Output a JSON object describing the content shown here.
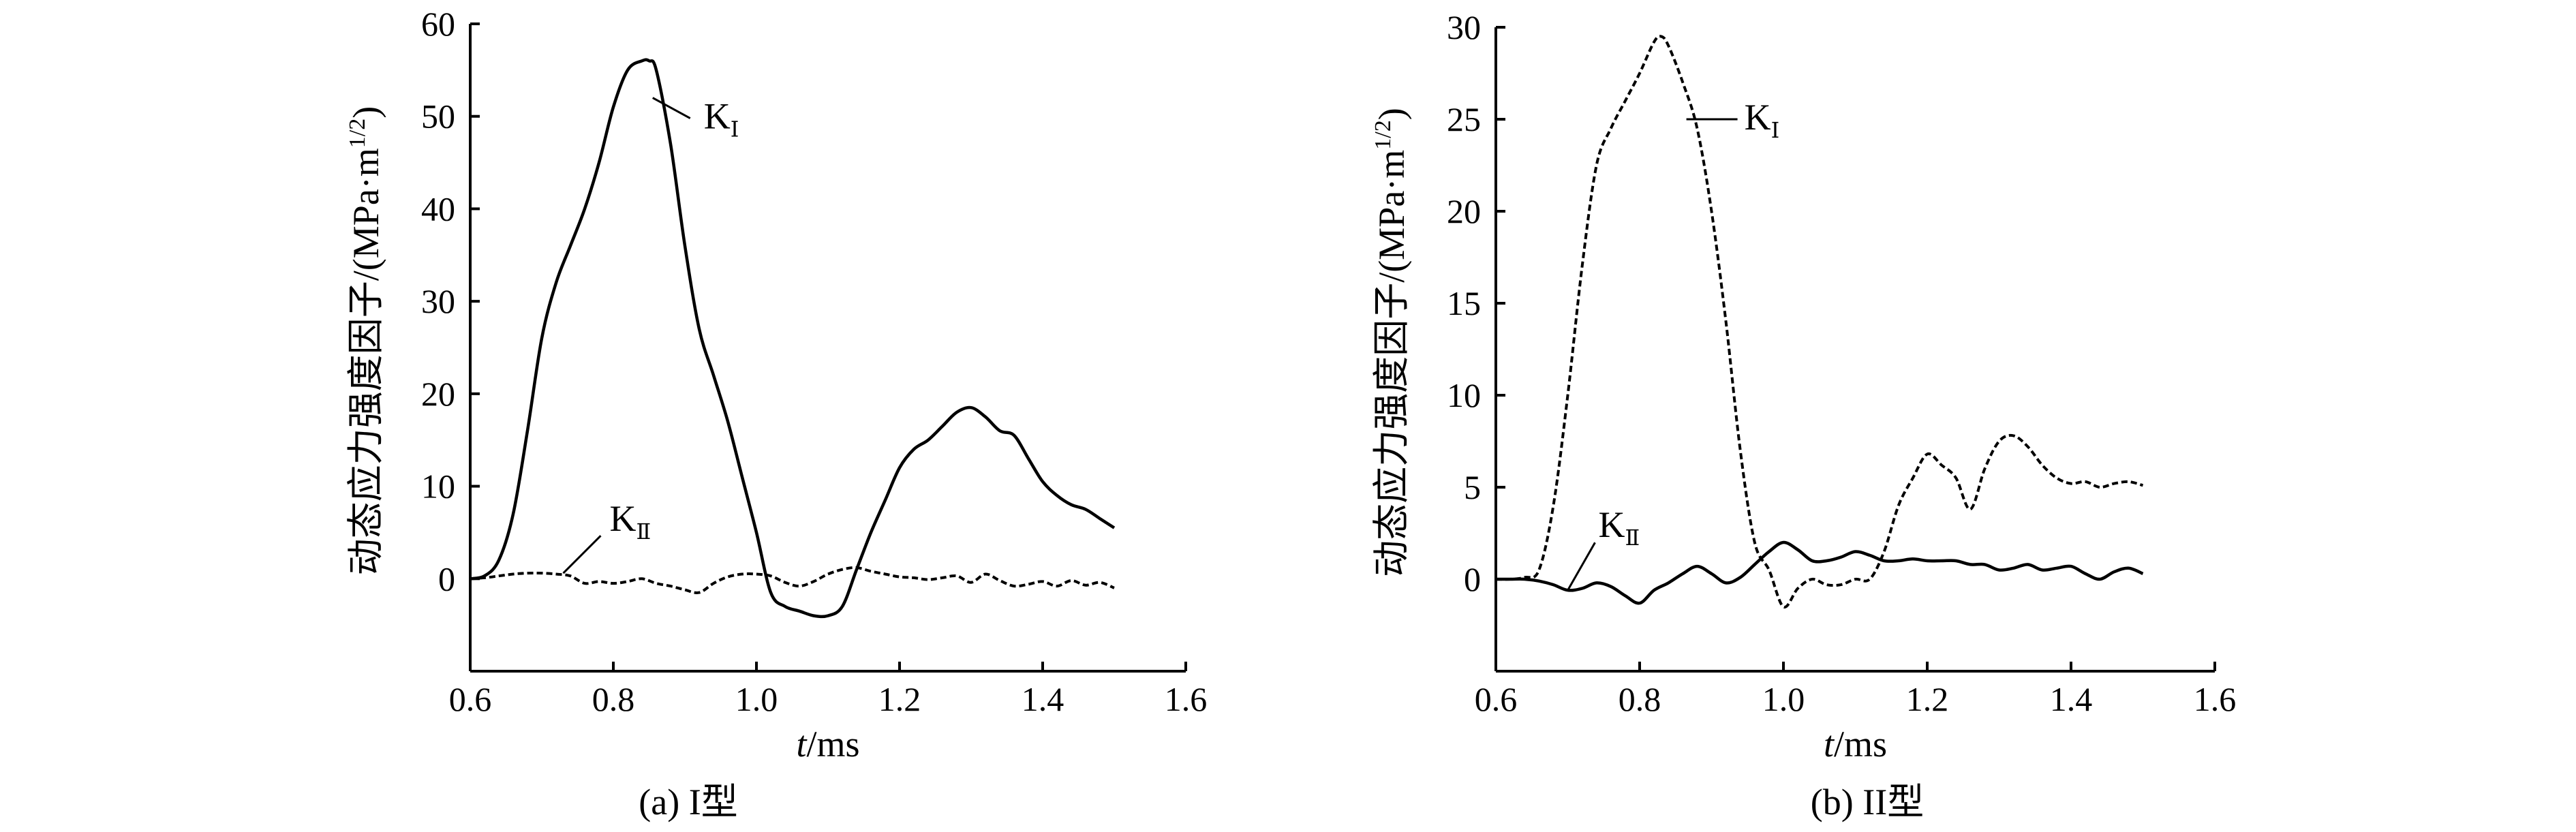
{
  "chart_data": [
    {
      "panel": "a",
      "type": "line",
      "caption": "(a) I型",
      "xlabel_italic": "t",
      "xlabel_rest": "/ms",
      "ylabel": "动态应力强度因子/(MPa·m",
      "ylabel_sup": "1/2",
      "ylabel_close": ")",
      "xlim": [
        0.6,
        1.6
      ],
      "ylim": [
        -10,
        60
      ],
      "xticks": [
        "0.6",
        "0.8",
        "1.0",
        "1.2",
        "1.4",
        "1.6"
      ],
      "xtick_values": [
        0.6,
        0.8,
        1.0,
        1.2,
        1.4,
        1.6
      ],
      "yticks": [
        "0",
        "10",
        "20",
        "30",
        "40",
        "50",
        "60"
      ],
      "ytick_values": [
        0,
        10,
        20,
        30,
        40,
        50,
        60
      ],
      "grid": false,
      "series": [
        {
          "name": "K",
          "subscript": "Ⅰ",
          "style": "solid",
          "x": [
            0.6,
            0.62,
            0.64,
            0.66,
            0.68,
            0.7,
            0.72,
            0.74,
            0.76,
            0.78,
            0.8,
            0.82,
            0.84,
            0.85,
            0.86,
            0.88,
            0.9,
            0.92,
            0.94,
            0.96,
            0.98,
            1.0,
            1.02,
            1.04,
            1.06,
            1.08,
            1.1,
            1.12,
            1.14,
            1.16,
            1.18,
            1.2,
            1.22,
            1.24,
            1.26,
            1.28,
            1.3,
            1.32,
            1.34,
            1.36,
            1.38,
            1.4,
            1.42,
            1.44,
            1.46,
            1.48,
            1.5
          ],
          "y": [
            0,
            0.3,
            2,
            7,
            16,
            26,
            32,
            36,
            40,
            45,
            51,
            55,
            56,
            56,
            55,
            47,
            36,
            27,
            22,
            17,
            11,
            5,
            -1.5,
            -3,
            -3.5,
            -4,
            -4,
            -3,
            1,
            5,
            8.5,
            12,
            14,
            15,
            16.5,
            18,
            18.5,
            17.5,
            16,
            15.5,
            13,
            10.5,
            9,
            8,
            7.5,
            6.5,
            5.5
          ]
        },
        {
          "name": "K",
          "subscript": "Ⅱ",
          "style": "dashed",
          "x": [
            0.6,
            0.62,
            0.64,
            0.66,
            0.68,
            0.7,
            0.72,
            0.74,
            0.76,
            0.78,
            0.8,
            0.82,
            0.84,
            0.86,
            0.88,
            0.9,
            0.92,
            0.94,
            0.96,
            0.98,
            1.0,
            1.02,
            1.04,
            1.06,
            1.08,
            1.1,
            1.12,
            1.14,
            1.16,
            1.18,
            1.2,
            1.22,
            1.24,
            1.26,
            1.28,
            1.3,
            1.32,
            1.34,
            1.36,
            1.38,
            1.4,
            1.42,
            1.44,
            1.46,
            1.48,
            1.5
          ],
          "y": [
            0,
            0.1,
            0.3,
            0.5,
            0.6,
            0.6,
            0.5,
            0.3,
            -0.5,
            -0.3,
            -0.5,
            -0.3,
            0,
            -0.5,
            -0.8,
            -1.2,
            -1.5,
            -0.5,
            0.2,
            0.5,
            0.5,
            0.3,
            -0.4,
            -0.8,
            -0.3,
            0.5,
            1,
            1.2,
            0.8,
            0.5,
            0.2,
            0.1,
            -0.1,
            0.1,
            0.3,
            -0.4,
            0.5,
            -0.2,
            -0.8,
            -0.6,
            -0.3,
            -0.8,
            -0.2,
            -0.7,
            -0.4,
            -1
          ]
        }
      ],
      "annotations": [
        {
          "label": "K",
          "subscript": "Ⅰ",
          "series_index": 0,
          "point_x": 0.855,
          "point_y": 52
        },
        {
          "label": "K",
          "subscript": "Ⅱ",
          "series_index": 1,
          "point_x": 0.73,
          "point_y": 0.6
        }
      ]
    },
    {
      "panel": "b",
      "type": "line",
      "caption": "(b) II型",
      "xlabel_italic": "t",
      "xlabel_rest": "/ms",
      "ylabel": "动态应力强度因子/(MPa·m",
      "ylabel_sup": "1/2",
      "ylabel_close": ")",
      "xlim": [
        0.6,
        1.6
      ],
      "ylim": [
        -5,
        30
      ],
      "xticks": [
        "0.6",
        "0.8",
        "1.0",
        "1.2",
        "1.4",
        "1.6"
      ],
      "xtick_values": [
        0.6,
        0.8,
        1.0,
        1.2,
        1.4,
        1.6
      ],
      "yticks": [
        "0",
        "5",
        "10",
        "15",
        "20",
        "25",
        "30"
      ],
      "ytick_values": [
        0,
        5,
        10,
        15,
        20,
        25,
        30
      ],
      "grid": false,
      "series": [
        {
          "name": "K",
          "subscript": "Ⅰ",
          "style": "dashed",
          "x": [
            0.6,
            0.62,
            0.64,
            0.66,
            0.68,
            0.7,
            0.72,
            0.74,
            0.76,
            0.78,
            0.8,
            0.82,
            0.83,
            0.84,
            0.86,
            0.88,
            0.9,
            0.92,
            0.94,
            0.96,
            0.98,
            1.0,
            1.02,
            1.04,
            1.06,
            1.08,
            1.1,
            1.12,
            1.14,
            1.16,
            1.18,
            1.2,
            1.22,
            1.24,
            1.26,
            1.28,
            1.3,
            1.32,
            1.34,
            1.36,
            1.38,
            1.4,
            1.42,
            1.44,
            1.46,
            1.48,
            1.5
          ],
          "y": [
            0,
            0,
            0.1,
            0.5,
            4,
            10,
            17,
            22.5,
            24.5,
            26,
            27.5,
            29.2,
            29.5,
            29,
            27,
            24.5,
            20,
            14,
            7,
            2,
            0.5,
            -1.5,
            -0.5,
            0,
            -0.3,
            -0.3,
            0,
            0,
            1.5,
            4,
            5.5,
            6.8,
            6.2,
            5.5,
            3.8,
            6,
            7.5,
            7.8,
            7.2,
            6.2,
            5.5,
            5.2,
            5.3,
            5,
            5.2,
            5.3,
            5.1
          ]
        },
        {
          "name": "K",
          "subscript": "Ⅱ",
          "style": "solid",
          "x": [
            0.6,
            0.62,
            0.64,
            0.66,
            0.68,
            0.7,
            0.72,
            0.74,
            0.76,
            0.78,
            0.8,
            0.82,
            0.84,
            0.86,
            0.88,
            0.9,
            0.92,
            0.94,
            0.96,
            0.98,
            1.0,
            1.02,
            1.04,
            1.06,
            1.08,
            1.1,
            1.12,
            1.14,
            1.16,
            1.18,
            1.2,
            1.22,
            1.24,
            1.26,
            1.28,
            1.3,
            1.32,
            1.34,
            1.36,
            1.38,
            1.4,
            1.42,
            1.44,
            1.46,
            1.48,
            1.5
          ],
          "y": [
            0,
            0,
            0,
            -0.1,
            -0.3,
            -0.6,
            -0.5,
            -0.2,
            -0.4,
            -0.9,
            -1.3,
            -0.6,
            -0.2,
            0.3,
            0.7,
            0.3,
            -0.2,
            0.1,
            0.8,
            1.5,
            2,
            1.6,
            1,
            1,
            1.2,
            1.5,
            1.3,
            1,
            1,
            1.1,
            1,
            1,
            1,
            0.8,
            0.8,
            0.5,
            0.6,
            0.8,
            0.5,
            0.6,
            0.7,
            0.3,
            0,
            0.4,
            0.6,
            0.3
          ]
        }
      ],
      "annotations": [
        {
          "label": "K",
          "subscript": "Ⅰ",
          "series_index": 0,
          "point_x": 0.865,
          "point_y": 25
        },
        {
          "label": "K",
          "subscript": "Ⅱ",
          "series_index": 1,
          "point_x": 0.7,
          "point_y": -0.6
        }
      ]
    }
  ]
}
